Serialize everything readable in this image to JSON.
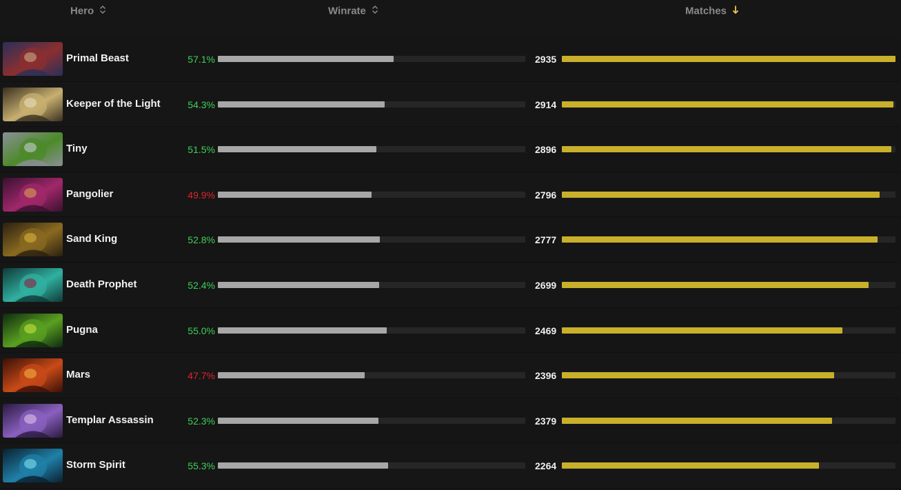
{
  "header": {
    "hero_label": "Hero",
    "winrate_label": "Winrate",
    "matches_label": "Matches",
    "sort_column": "Matches",
    "sort_direction": "descending",
    "sort_icon": "arrow-down-icon",
    "unsorted_icon": "sort-updown-icon"
  },
  "colors": {
    "winrate_positive": "#3fd058",
    "winrate_negative": "#e0242e",
    "winrate_bar": "#a7a7a7",
    "matches_bar": "#c9b02b"
  },
  "matches_max": 2935,
  "heroes": [
    {
      "name": "Primal Beast",
      "winrate": "57.1%",
      "winrate_value": 57.1,
      "matches": "2935",
      "matches_value": 2935,
      "portrait_icon": "primal-beast-portrait-icon",
      "tint": [
        "#2a2f5a",
        "#8b2f2f",
        "#c9a98a"
      ]
    },
    {
      "name": "Keeper of the Light",
      "winrate": "54.3%",
      "winrate_value": 54.3,
      "matches": "2914",
      "matches_value": 2914,
      "portrait_icon": "keeper-of-the-light-portrait-icon",
      "tint": [
        "#3a3020",
        "#c8b070",
        "#e8dcc0"
      ]
    },
    {
      "name": "Tiny",
      "winrate": "51.5%",
      "winrate_value": 51.5,
      "matches": "2896",
      "matches_value": 2896,
      "portrait_icon": "tiny-portrait-icon",
      "tint": [
        "#8a8f96",
        "#4c8a2a",
        "#c6cbd0"
      ]
    },
    {
      "name": "Pangolier",
      "winrate": "49.9%",
      "winrate_value": 49.9,
      "matches": "2796",
      "matches_value": 2796,
      "portrait_icon": "pangolier-portrait-icon",
      "tint": [
        "#3a1030",
        "#a0286a",
        "#d8a050"
      ]
    },
    {
      "name": "Sand King",
      "winrate": "52.8%",
      "winrate_value": 52.8,
      "matches": "2777",
      "matches_value": 2777,
      "portrait_icon": "sand-king-portrait-icon",
      "tint": [
        "#2a2010",
        "#8a6a20",
        "#d8b040"
      ]
    },
    {
      "name": "Death Prophet",
      "winrate": "52.4%",
      "winrate_value": 52.4,
      "matches": "2699",
      "matches_value": 2699,
      "portrait_icon": "death-prophet-portrait-icon",
      "tint": [
        "#103a38",
        "#30b0a0",
        "#902040"
      ]
    },
    {
      "name": "Pugna",
      "winrate": "55.0%",
      "winrate_value": 55.0,
      "matches": "2469",
      "matches_value": 2469,
      "portrait_icon": "pugna-portrait-icon",
      "tint": [
        "#0e2a10",
        "#5aa020",
        "#c8e040"
      ]
    },
    {
      "name": "Mars",
      "winrate": "47.7%",
      "winrate_value": 47.7,
      "matches": "2396",
      "matches_value": 2396,
      "portrait_icon": "mars-portrait-icon",
      "tint": [
        "#3a1008",
        "#c84a18",
        "#f0b040"
      ]
    },
    {
      "name": "Templar Assassin",
      "winrate": "52.3%",
      "winrate_value": 52.3,
      "matches": "2379",
      "matches_value": 2379,
      "portrait_icon": "templar-assassin-portrait-icon",
      "tint": [
        "#2a1a40",
        "#8a60c0",
        "#e0c0e8"
      ]
    },
    {
      "name": "Storm Spirit",
      "winrate": "55.3%",
      "winrate_value": 55.3,
      "matches": "2264",
      "matches_value": 2264,
      "portrait_icon": "storm-spirit-portrait-icon",
      "tint": [
        "#0a2030",
        "#2080a8",
        "#80e0f0"
      ]
    }
  ]
}
